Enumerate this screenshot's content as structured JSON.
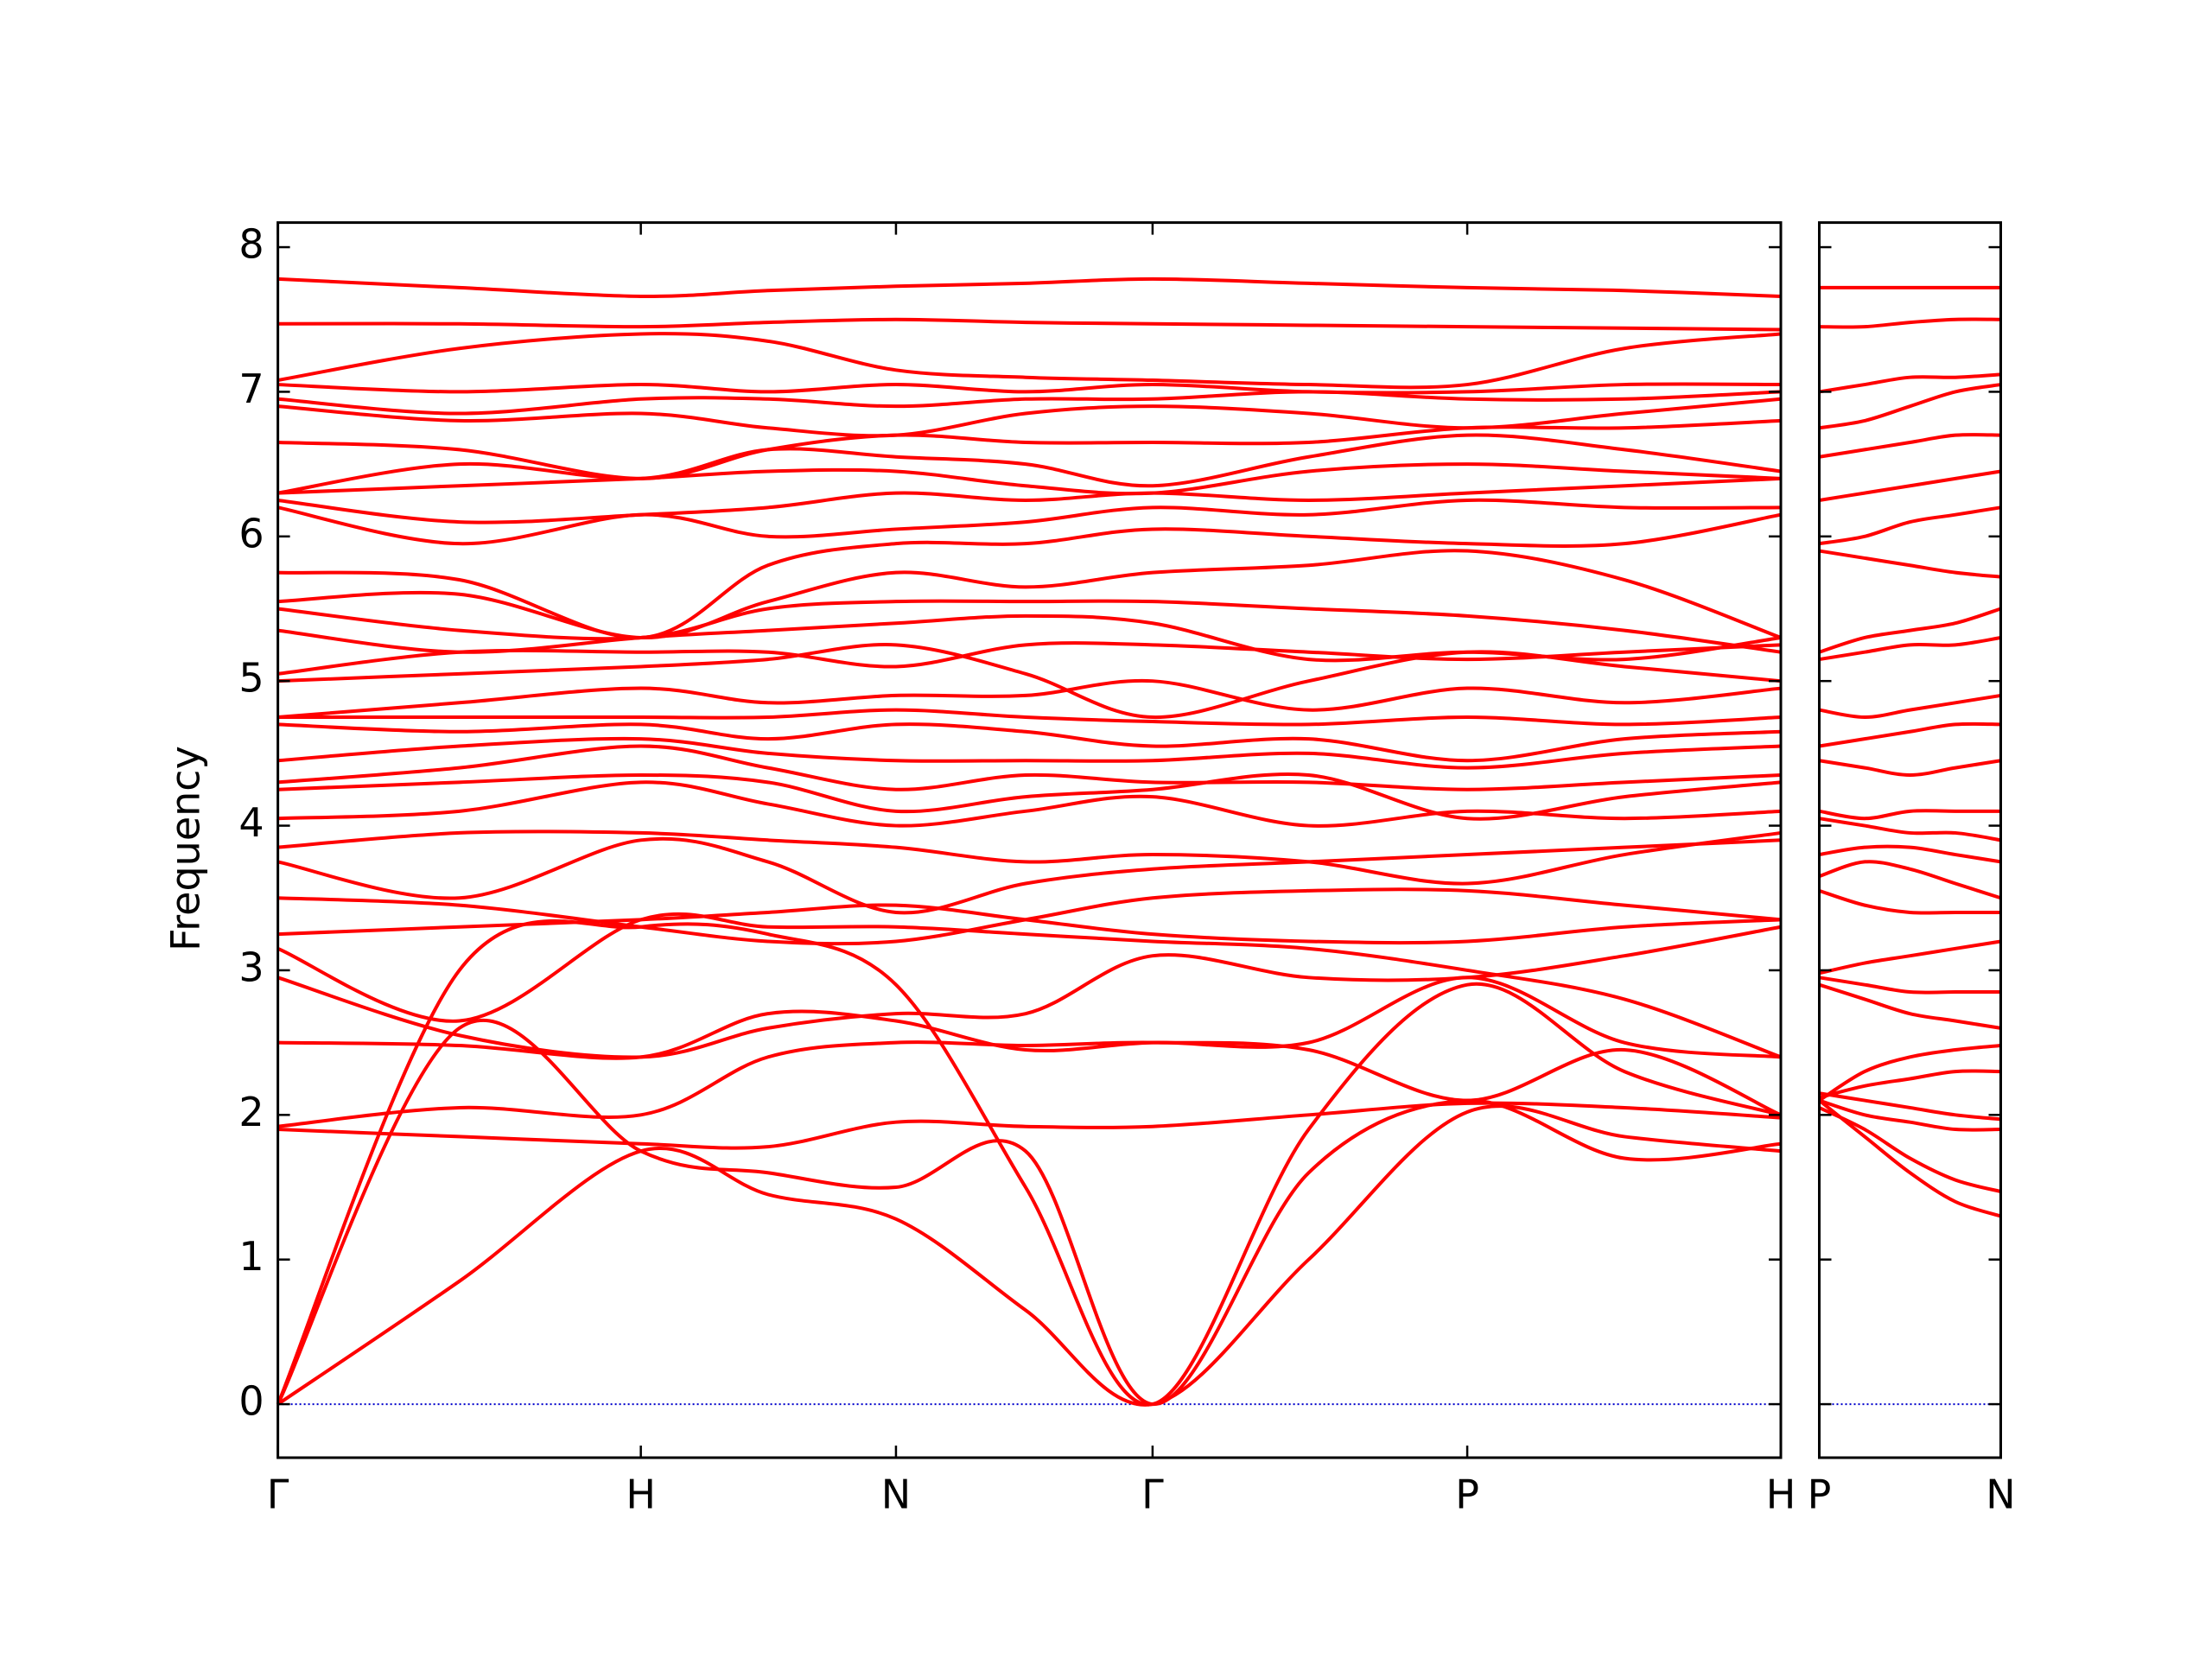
{
  "chart_data": [
    {
      "type": "line",
      "ylabel": "Frequency",
      "color": "#ff0000",
      "ylim": [
        -0.37,
        8.17
      ],
      "yticks": [
        0,
        1,
        2,
        3,
        4,
        5,
        6,
        7,
        8
      ],
      "ytick_labels": true,
      "xlim": [
        0,
        4.141
      ],
      "xticks": [
        {
          "value": 0,
          "label": "Γ"
        },
        {
          "value": 1,
          "label": "H"
        },
        {
          "value": 1.703,
          "label": "N"
        },
        {
          "value": 2.41,
          "label": "Γ"
        },
        {
          "value": 3.277,
          "label": "P"
        },
        {
          "value": 4.141,
          "label": "H"
        }
      ],
      "hline": 0,
      "hline_color": "#0000cc",
      "x": [
        0,
        0.5,
        1,
        1.35,
        1.703,
        2.06,
        2.41,
        2.84,
        3.277,
        3.71,
        4.141
      ],
      "series": [
        {
          "values": [
            0,
            0.85,
            1.75,
            1.45,
            1.28,
            0.65,
            0,
            1.0,
            2.02,
            1.85,
            1.75
          ]
        },
        {
          "values": [
            0,
            2.6,
            1.75,
            1.6,
            1.5,
            1.75,
            0,
            1.6,
            2.1,
            1.7,
            1.8
          ]
        },
        {
          "values": [
            0,
            3.0,
            3.3,
            3.25,
            2.9,
            1.5,
            0,
            1.9,
            2.9,
            2.3,
            2.0
          ]
        },
        {
          "values": [
            1.9,
            1.85,
            1.8,
            1.78,
            1.95,
            1.92,
            1.92,
            2.0,
            2.08,
            2.05,
            1.98
          ]
        },
        {
          "values": [
            1.92,
            2.05,
            2.0,
            2.4,
            2.5,
            2.48,
            2.5,
            2.45,
            2.1,
            2.45,
            2.0
          ]
        },
        {
          "values": [
            2.5,
            2.48,
            2.4,
            2.7,
            2.65,
            2.45,
            2.5,
            2.5,
            2.95,
            2.5,
            2.4
          ]
        },
        {
          "values": [
            2.95,
            2.55,
            2.4,
            2.6,
            2.7,
            2.7,
            3.1,
            2.95,
            2.95,
            3.1,
            3.3
          ]
        },
        {
          "values": [
            3.15,
            2.65,
            3.35,
            3.3,
            3.3,
            3.25,
            3.2,
            3.15,
            3.0,
            2.8,
            2.4
          ]
        },
        {
          "values": [
            3.25,
            3.3,
            3.35,
            3.4,
            3.45,
            3.35,
            3.25,
            3.2,
            3.2,
            3.3,
            3.35
          ]
        },
        {
          "values": [
            3.5,
            3.45,
            3.3,
            3.2,
            3.2,
            3.35,
            3.5,
            3.55,
            3.55,
            3.45,
            3.35
          ]
        },
        {
          "values": [
            3.75,
            3.5,
            3.9,
            3.75,
            3.4,
            3.6,
            3.7,
            3.75,
            3.8,
            3.85,
            3.9
          ]
        },
        {
          "values": [
            3.85,
            3.95,
            3.95,
            3.9,
            3.85,
            3.75,
            3.8,
            3.75,
            3.6,
            3.8,
            3.95
          ]
        },
        {
          "values": [
            4.05,
            4.1,
            4.3,
            4.15,
            4.0,
            4.1,
            4.2,
            4.0,
            4.1,
            4.05,
            4.1
          ]
        },
        {
          "values": [
            4.25,
            4.3,
            4.35,
            4.3,
            4.1,
            4.2,
            4.25,
            4.35,
            4.05,
            4.2,
            4.3
          ]
        },
        {
          "values": [
            4.3,
            4.4,
            4.55,
            4.4,
            4.25,
            4.35,
            4.3,
            4.3,
            4.25,
            4.3,
            4.35
          ]
        },
        {
          "values": [
            4.45,
            4.55,
            4.6,
            4.5,
            4.45,
            4.45,
            4.45,
            4.5,
            4.4,
            4.5,
            4.55
          ]
        },
        {
          "values": [
            4.7,
            4.65,
            4.7,
            4.6,
            4.7,
            4.65,
            4.55,
            4.6,
            4.45,
            4.6,
            4.65
          ]
        },
        {
          "values": [
            4.75,
            4.75,
            4.75,
            4.75,
            4.8,
            4.75,
            4.72,
            4.7,
            4.75,
            4.7,
            4.75
          ]
        },
        {
          "values": [
            4.75,
            4.85,
            4.95,
            4.85,
            4.9,
            4.9,
            5.0,
            4.8,
            4.95,
            4.85,
            4.95
          ]
        },
        {
          "values": [
            5.0,
            5.05,
            5.1,
            5.15,
            5.25,
            5.05,
            4.75,
            5.0,
            5.2,
            5.1,
            5.0
          ]
        },
        {
          "values": [
            5.05,
            5.2,
            5.2,
            5.2,
            5.1,
            5.25,
            5.25,
            5.2,
            5.15,
            5.2,
            5.25
          ]
        },
        {
          "values": [
            5.35,
            5.2,
            5.3,
            5.35,
            5.4,
            5.45,
            5.4,
            5.15,
            5.2,
            5.15,
            5.3
          ]
        },
        {
          "values": [
            5.5,
            5.35,
            5.3,
            5.5,
            5.55,
            5.55,
            5.55,
            5.5,
            5.45,
            5.35,
            5.2
          ]
        },
        {
          "values": [
            5.55,
            5.6,
            5.3,
            5.55,
            5.75,
            5.65,
            5.75,
            5.8,
            5.9,
            5.7,
            5.3
          ]
        },
        {
          "values": [
            5.75,
            5.7,
            5.3,
            5.8,
            5.95,
            5.95,
            6.05,
            6.0,
            5.95,
            5.95,
            6.15
          ]
        },
        {
          "values": [
            6.2,
            5.95,
            6.15,
            6.0,
            6.05,
            6.1,
            6.2,
            6.15,
            6.25,
            6.2,
            6.2
          ]
        },
        {
          "values": [
            6.25,
            6.1,
            6.15,
            6.2,
            6.3,
            6.25,
            6.3,
            6.25,
            6.3,
            6.35,
            6.4
          ]
        },
        {
          "values": [
            6.3,
            6.35,
            6.4,
            6.45,
            6.45,
            6.35,
            6.3,
            6.45,
            6.5,
            6.45,
            6.4
          ]
        },
        {
          "values": [
            6.3,
            6.5,
            6.4,
            6.6,
            6.55,
            6.5,
            6.35,
            6.55,
            6.7,
            6.6,
            6.45
          ]
        },
        {
          "values": [
            6.65,
            6.6,
            6.4,
            6.6,
            6.7,
            6.65,
            6.65,
            6.65,
            6.75,
            6.75,
            6.8
          ]
        },
        {
          "values": [
            6.9,
            6.8,
            6.85,
            6.75,
            6.7,
            6.85,
            6.9,
            6.85,
            6.75,
            6.85,
            6.95
          ]
        },
        {
          "values": [
            6.95,
            6.85,
            6.95,
            6.95,
            6.9,
            6.95,
            6.95,
            7.0,
            6.95,
            6.95,
            7.0
          ]
        },
        {
          "values": [
            7.05,
            7.0,
            7.05,
            7.0,
            7.05,
            7.0,
            7.05,
            7.0,
            7.0,
            7.05,
            7.05
          ]
        },
        {
          "values": [
            7.08,
            7.3,
            7.4,
            7.35,
            7.15,
            7.1,
            7.08,
            7.05,
            7.05,
            7.3,
            7.4
          ]
        },
        {
          "values": [
            7.47,
            7.47,
            7.45,
            7.48,
            7.5,
            7.48,
            7.47,
            7.46,
            7.45,
            7.44,
            7.43
          ]
        },
        {
          "values": [
            7.78,
            7.72,
            7.66,
            7.7,
            7.73,
            7.75,
            7.78,
            7.75,
            7.72,
            7.7,
            7.66
          ]
        }
      ]
    },
    {
      "type": "line",
      "color": "#ff0000",
      "ylim": [
        -0.37,
        8.17
      ],
      "yticks": [
        0,
        1,
        2,
        3,
        4,
        5,
        6,
        7,
        8
      ],
      "ytick_labels": false,
      "xlim": [
        0,
        0.5
      ],
      "xticks": [
        {
          "value": 0,
          "label": "P"
        },
        {
          "value": 0.5,
          "label": "N"
        }
      ],
      "hline": 0,
      "hline_color": "#0000cc",
      "x": [
        0,
        0.125,
        0.25,
        0.375,
        0.5
      ],
      "series": [
        {
          "values": [
            2.1,
            1.85,
            1.6,
            1.4,
            1.3
          ]
        },
        {
          "values": [
            2.05,
            1.9,
            1.7,
            1.55,
            1.47
          ]
        },
        {
          "values": [
            2.1,
            2.0,
            1.95,
            1.9,
            1.9
          ]
        },
        {
          "values": [
            2.15,
            2.1,
            2.05,
            2.0,
            1.97
          ]
        },
        {
          "values": [
            2.12,
            2.2,
            2.25,
            2.3,
            2.3
          ]
        },
        {
          "values": [
            2.1,
            2.3,
            2.4,
            2.45,
            2.48
          ]
        },
        {
          "values": [
            2.9,
            2.8,
            2.7,
            2.65,
            2.6
          ]
        },
        {
          "values": [
            2.95,
            2.9,
            2.85,
            2.85,
            2.85
          ]
        },
        {
          "values": [
            2.98,
            3.05,
            3.1,
            3.15,
            3.2
          ]
        },
        {
          "values": [
            3.55,
            3.45,
            3.4,
            3.4,
            3.4
          ]
        },
        {
          "values": [
            3.65,
            3.75,
            3.7,
            3.6,
            3.5
          ]
        },
        {
          "values": [
            3.8,
            3.85,
            3.85,
            3.8,
            3.75
          ]
        },
        {
          "values": [
            4.05,
            4.0,
            3.95,
            3.95,
            3.9
          ]
        },
        {
          "values": [
            4.1,
            4.05,
            4.1,
            4.1,
            4.1
          ]
        },
        {
          "values": [
            4.45,
            4.4,
            4.35,
            4.4,
            4.45
          ]
        },
        {
          "values": [
            4.55,
            4.6,
            4.65,
            4.7,
            4.7
          ]
        },
        {
          "values": [
            4.8,
            4.75,
            4.8,
            4.85,
            4.9
          ]
        },
        {
          "values": [
            5.15,
            5.2,
            5.25,
            5.25,
            5.3
          ]
        },
        {
          "values": [
            5.2,
            5.3,
            5.35,
            5.4,
            5.5
          ]
        },
        {
          "values": [
            5.9,
            5.85,
            5.8,
            5.75,
            5.72
          ]
        },
        {
          "values": [
            5.95,
            6.0,
            6.1,
            6.15,
            6.2
          ]
        },
        {
          "values": [
            6.25,
            6.3,
            6.35,
            6.4,
            6.45
          ]
        },
        {
          "values": [
            6.55,
            6.6,
            6.65,
            6.7,
            6.7
          ]
        },
        {
          "values": [
            6.75,
            6.8,
            6.9,
            7.0,
            7.05
          ]
        },
        {
          "values": [
            7.0,
            7.05,
            7.1,
            7.1,
            7.12
          ]
        },
        {
          "values": [
            7.45,
            7.45,
            7.48,
            7.5,
            7.5
          ]
        },
        {
          "values": [
            7.72,
            7.72,
            7.72,
            7.72,
            7.72
          ]
        }
      ]
    }
  ]
}
